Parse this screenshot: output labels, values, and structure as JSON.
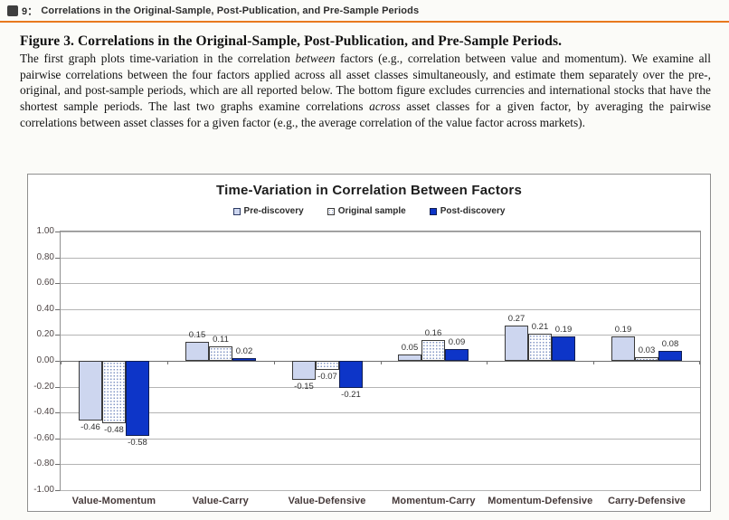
{
  "header": {
    "figure_glyph": "图",
    "figure_number": "9：",
    "title": "Correlations in the Original-Sample, Post-Publication, and Pre-Sample Periods",
    "rule_color": "#e8791e"
  },
  "caption": {
    "title": "Figure 3. Correlations in the Original-Sample, Post-Publication, and Pre-Sample Periods.",
    "body_segments": [
      {
        "text": "The first graph plots time-variation in the correlation ",
        "italic": false
      },
      {
        "text": "between",
        "italic": true
      },
      {
        "text": " factors (e.g., correlation between value and momentum). We examine all pairwise correlations between the four factors applied across all asset classes simultaneously, and estimate them separately over the pre-, original, and post-sample periods, which are all reported below. The bottom figure excludes currencies and international stocks that have the shortest sample periods. The last two graphs examine correlations ",
        "italic": false
      },
      {
        "text": "across",
        "italic": true
      },
      {
        "text": " asset classes for a given factor, by averaging the pairwise correlations between asset classes for a given factor (e.g., the average correlation of the value factor across markets).",
        "italic": false
      }
    ]
  },
  "chart_data": {
    "type": "bar",
    "title": "Time-Variation in Correlation Between Factors",
    "categories": [
      "Value-Momentum",
      "Value-Carry",
      "Value-Defensive",
      "Momentum-Carry",
      "Momentum-Defensive",
      "Carry-Defensive"
    ],
    "series": [
      {
        "name": "Pre-discovery",
        "style": "pre",
        "values": [
          -0.46,
          0.15,
          -0.15,
          0.05,
          0.27,
          0.19
        ]
      },
      {
        "name": "Original sample",
        "style": "orig",
        "values": [
          -0.48,
          0.11,
          -0.07,
          0.16,
          0.21,
          0.03
        ]
      },
      {
        "name": "Post-discovery",
        "style": "post",
        "values": [
          -0.58,
          0.02,
          -0.21,
          0.09,
          0.19,
          0.08
        ]
      }
    ],
    "ylim": [
      -1.0,
      1.0
    ],
    "ytick_step": 0.2,
    "ytick_labels": [
      "1.00",
      "0.80",
      "0.60",
      "0.40",
      "0.20",
      "0.00",
      "-0.20",
      "-0.40",
      "-0.60",
      "-0.80",
      "-1.00"
    ],
    "grid": true,
    "legend_position": "top",
    "data_labels": true,
    "colors": {
      "pre_fill": "#cdd6ef",
      "original_fill": "#ffffff",
      "original_dot": "#8094c4",
      "post_fill": "#0d35c8",
      "bar_border": "#3a3a3a",
      "grid": "#b4b4b4",
      "header_rule": "#e8791e"
    }
  }
}
